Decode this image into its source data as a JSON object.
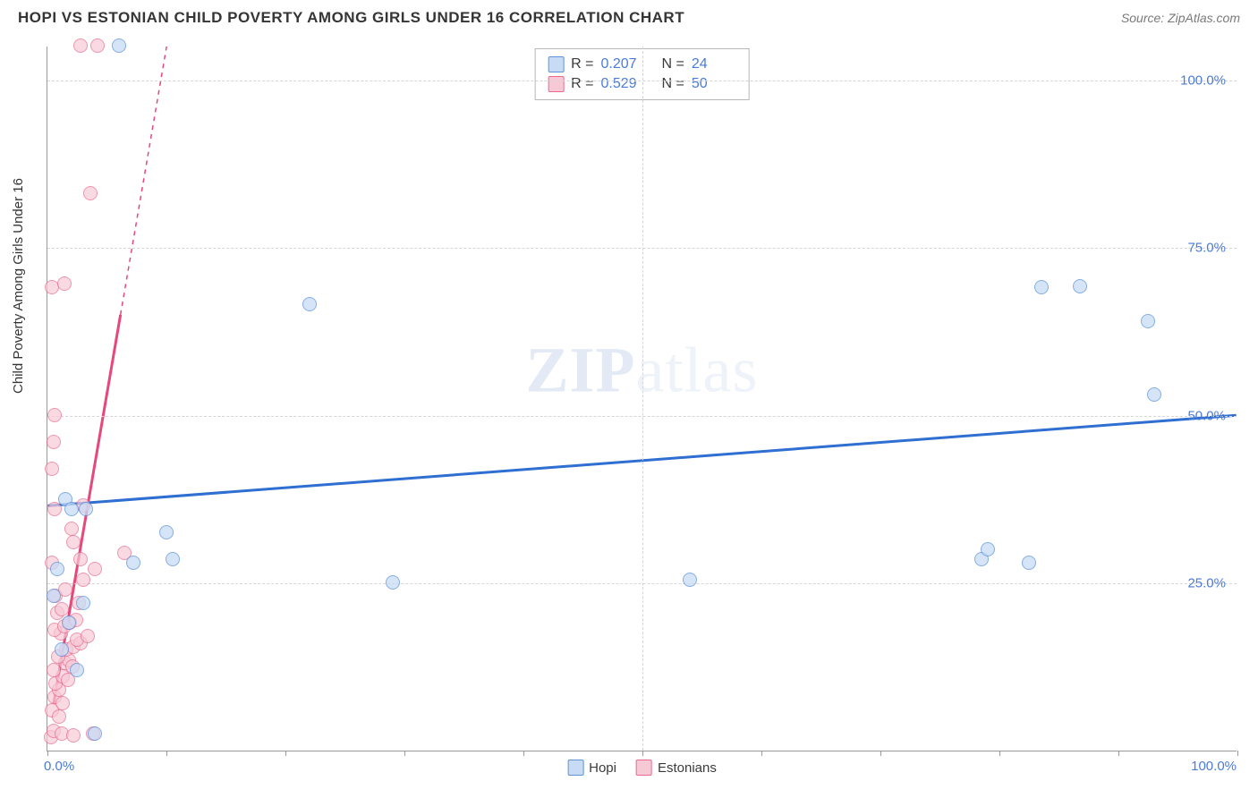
{
  "header": {
    "title": "HOPI VS ESTONIAN CHILD POVERTY AMONG GIRLS UNDER 16 CORRELATION CHART",
    "source": "Source: ZipAtlas.com"
  },
  "y_axis_label": "Child Poverty Among Girls Under 16",
  "watermark_parts": {
    "zip": "ZIP",
    "atlas": "atlas"
  },
  "chart": {
    "type": "scatter",
    "background_color": "#ffffff",
    "grid_color": "#d6d6d6",
    "axis_color": "#9a9a9a",
    "xlim": [
      0,
      100
    ],
    "ylim": [
      0,
      105
    ],
    "x_ticks": [
      0,
      10,
      20,
      30,
      40,
      50,
      60,
      70,
      80,
      90,
      100
    ],
    "x_tick_labels": [
      {
        "pos": 0,
        "text": "0.0%",
        "align": "left"
      },
      {
        "pos": 100,
        "text": "100.0%",
        "align": "right"
      }
    ],
    "y_gridlines": [
      25,
      50,
      75,
      100
    ],
    "y_tick_labels": [
      {
        "pos": 25,
        "text": "25.0%"
      },
      {
        "pos": 50,
        "text": "50.0%"
      },
      {
        "pos": 75,
        "text": "75.0%"
      },
      {
        "pos": 100,
        "text": "100.0%"
      }
    ],
    "point_radius": 8,
    "series": {
      "hopi": {
        "label": "Hopi",
        "fill": "#c7dbf5",
        "stroke": "#5e93d9",
        "fill_opacity": 0.75,
        "trend_color": "#2e6fd1",
        "trend_width": 3,
        "trend_dash": "none",
        "trend": {
          "x1": 0,
          "y1": 36.5,
          "x2": 100,
          "y2": 50
        },
        "points": [
          {
            "x": 0.5,
            "y": 23
          },
          {
            "x": 0.8,
            "y": 27
          },
          {
            "x": 1.5,
            "y": 37.5
          },
          {
            "x": 2,
            "y": 36
          },
          {
            "x": 3,
            "y": 22
          },
          {
            "x": 3.2,
            "y": 36
          },
          {
            "x": 4,
            "y": 2.5
          },
          {
            "x": 6,
            "y": 105
          },
          {
            "x": 7.2,
            "y": 28
          },
          {
            "x": 10,
            "y": 32.5
          },
          {
            "x": 10.5,
            "y": 28.5
          },
          {
            "x": 22,
            "y": 66.5
          },
          {
            "x": 29,
            "y": 25
          },
          {
            "x": 54,
            "y": 25.5
          },
          {
            "x": 78.5,
            "y": 28.5
          },
          {
            "x": 79,
            "y": 30
          },
          {
            "x": 82.5,
            "y": 28
          },
          {
            "x": 83.5,
            "y": 69
          },
          {
            "x": 86.8,
            "y": 69.2
          },
          {
            "x": 92.5,
            "y": 64
          },
          {
            "x": 93,
            "y": 53
          },
          {
            "x": 1.8,
            "y": 19
          },
          {
            "x": 1.2,
            "y": 15
          },
          {
            "x": 2.5,
            "y": 12
          }
        ]
      },
      "estonians": {
        "label": "Estonians",
        "fill": "#f7c9d6",
        "stroke": "#e86a8e",
        "fill_opacity": 0.7,
        "trend_color": "#e6487a",
        "trend_width": 3,
        "trend_dash_solid_until_y": 65,
        "trend": {
          "x1": 0.5,
          "y1": 7,
          "x2": 10,
          "y2": 105
        },
        "points": [
          {
            "x": 0.3,
            "y": 2
          },
          {
            "x": 0.5,
            "y": 3
          },
          {
            "x": 1.2,
            "y": 2.5
          },
          {
            "x": 2.2,
            "y": 2.3
          },
          {
            "x": 3.8,
            "y": 2.5
          },
          {
            "x": 0.4,
            "y": 6
          },
          {
            "x": 0.6,
            "y": 8
          },
          {
            "x": 1.0,
            "y": 9
          },
          {
            "x": 0.7,
            "y": 10
          },
          {
            "x": 1.3,
            "y": 11
          },
          {
            "x": 0.5,
            "y": 12
          },
          {
            "x": 1.5,
            "y": 13
          },
          {
            "x": 1.8,
            "y": 13.5
          },
          {
            "x": 0.9,
            "y": 14
          },
          {
            "x": 1.6,
            "y": 15
          },
          {
            "x": 2.2,
            "y": 15.5
          },
          {
            "x": 2.8,
            "y": 16
          },
          {
            "x": 2.5,
            "y": 16.5
          },
          {
            "x": 3.4,
            "y": 17
          },
          {
            "x": 1.1,
            "y": 17.5
          },
          {
            "x": 0.6,
            "y": 18
          },
          {
            "x": 1.4,
            "y": 18.5
          },
          {
            "x": 1.9,
            "y": 19
          },
          {
            "x": 2.4,
            "y": 19.5
          },
          {
            "x": 0.8,
            "y": 20.5
          },
          {
            "x": 1.2,
            "y": 21
          },
          {
            "x": 2.6,
            "y": 22
          },
          {
            "x": 0.7,
            "y": 23
          },
          {
            "x": 1.5,
            "y": 24
          },
          {
            "x": 3.0,
            "y": 25.5
          },
          {
            "x": 4.0,
            "y": 27
          },
          {
            "x": 0.4,
            "y": 28
          },
          {
            "x": 2.8,
            "y": 28.5
          },
          {
            "x": 6.5,
            "y": 29.5
          },
          {
            "x": 2.2,
            "y": 31
          },
          {
            "x": 2.0,
            "y": 33
          },
          {
            "x": 0.6,
            "y": 36
          },
          {
            "x": 3.0,
            "y": 36.5
          },
          {
            "x": 0.4,
            "y": 42
          },
          {
            "x": 0.5,
            "y": 46
          },
          {
            "x": 0.6,
            "y": 50
          },
          {
            "x": 0.4,
            "y": 69
          },
          {
            "x": 1.4,
            "y": 69.5
          },
          {
            "x": 3.6,
            "y": 83
          },
          {
            "x": 2.8,
            "y": 105
          },
          {
            "x": 4.2,
            "y": 105
          },
          {
            "x": 1.7,
            "y": 10.5
          },
          {
            "x": 2.1,
            "y": 12.5
          },
          {
            "x": 1.0,
            "y": 5
          },
          {
            "x": 1.3,
            "y": 7
          }
        ]
      }
    }
  },
  "stats": {
    "rows": [
      {
        "series": "hopi",
        "r_label": "R =",
        "r": "0.207",
        "n_label": "N =",
        "n": "24"
      },
      {
        "series": "estonians",
        "r_label": "R =",
        "r": "0.529",
        "n_label": "N =",
        "n": "50"
      }
    ]
  },
  "bottom_legend": [
    {
      "series": "hopi",
      "label": "Hopi"
    },
    {
      "series": "estonians",
      "label": "Estonians"
    }
  ]
}
